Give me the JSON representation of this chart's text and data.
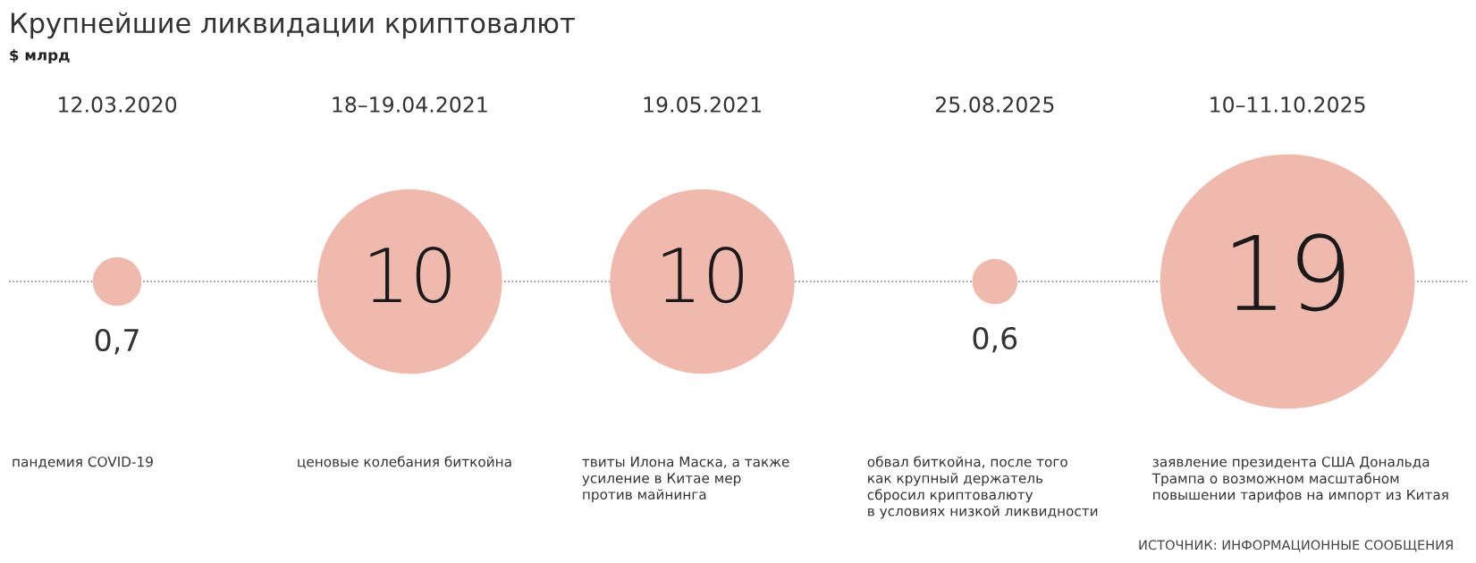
{
  "chart_data": {
    "type": "other",
    "title": "Крупнейшие ликвидации криптовалют",
    "subtitle": "$ млрд",
    "categories": [
      "12.03.2020",
      "18–19.04.2021",
      "19.05.2021",
      "25.08.2025",
      "10–11.10.2025"
    ],
    "values": [
      0.7,
      10,
      10,
      0.6,
      19
    ],
    "value_labels": [
      "0,7",
      "10",
      "10",
      "0,6",
      "19"
    ],
    "color": "#f0b9ad",
    "annotations": [
      {
        "text": "пандемия COVID-19",
        "x": "12.03.2020"
      },
      {
        "text": "ценовые колебания биткойна",
        "x": "18–19.04.2021"
      },
      {
        "text": "твиты Илона Маска, а также\nусиление в Китае мер\nпротив майнинга",
        "x": "19.05.2021"
      },
      {
        "text": "обвал биткойна, после того\nкак крупный держатель\nсбросил криптовалюту\nв условиях низкой ликвидности",
        "x": "25.08.2025"
      },
      {
        "text": "заявление президента США Дональда\nТрампа о возможном масштабном\nповышении тарифов на импорт из Китая",
        "x": "10–11.10.2025"
      },
      "ИСТОЧНИК: ИНФОРМАЦИОННЫЕ СООБЩЕНИЯ"
    ]
  }
}
